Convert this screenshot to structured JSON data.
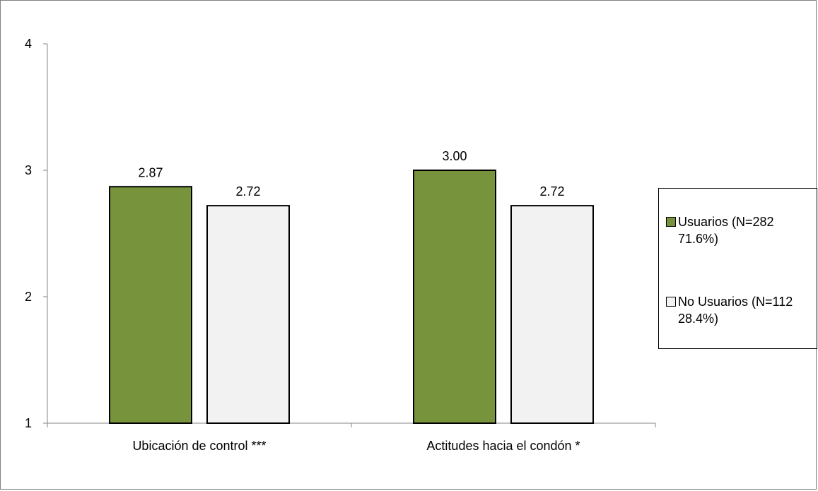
{
  "chart_data": {
    "type": "bar",
    "categories": [
      "Ubicación de control ***",
      "Actitudes hacia el condón *"
    ],
    "series": [
      {
        "name": "Usuarios (N=282\n71.6%)",
        "values": [
          2.87,
          3.0
        ],
        "labels": [
          "2.87",
          "3.00"
        ],
        "color": "#77933c"
      },
      {
        "name": "No Usuarios (N=112\n28.4%)",
        "values": [
          2.72,
          2.72
        ],
        "labels": [
          "2.72",
          "2.72"
        ],
        "color": "#f2f2f2"
      }
    ],
    "ylim": [
      1,
      4
    ],
    "yticks": [
      "1",
      "2",
      "3",
      "4"
    ],
    "grid": false,
    "legend": "right",
    "xlabel": "",
    "ylabel": ""
  }
}
